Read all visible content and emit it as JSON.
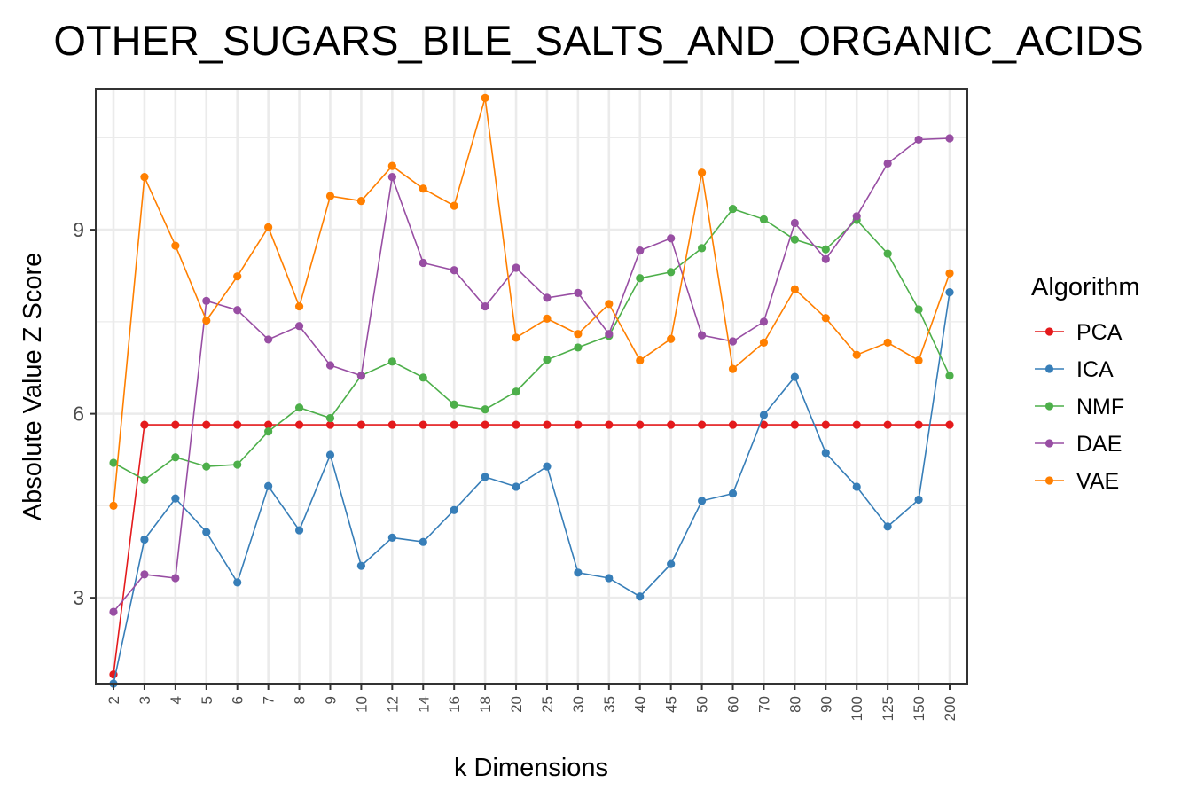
{
  "chart_data": {
    "type": "line",
    "title": "OTHER_SUGARS_BILE_SALTS_AND_ORGANIC_ACIDS",
    "xlabel": "k Dimensions",
    "ylabel": "Absolute Value Z Score",
    "categories": [
      "2",
      "3",
      "4",
      "5",
      "6",
      "7",
      "8",
      "9",
      "10",
      "12",
      "14",
      "16",
      "18",
      "20",
      "25",
      "30",
      "35",
      "40",
      "45",
      "50",
      "60",
      "70",
      "80",
      "90",
      "100",
      "125",
      "150",
      "200"
    ],
    "ylim": [
      1.6,
      11.3
    ],
    "yticks": [
      3,
      6,
      9
    ],
    "grid": true,
    "legend": {
      "title": "Algorithm",
      "position": "right"
    },
    "series": [
      {
        "name": "PCA",
        "color": "#e41a1c",
        "values": [
          1.75,
          5.82,
          5.82,
          5.82,
          5.82,
          5.82,
          5.82,
          5.82,
          5.82,
          5.82,
          5.82,
          5.82,
          5.82,
          5.82,
          5.82,
          5.82,
          5.82,
          5.82,
          5.82,
          5.82,
          5.82,
          5.82,
          5.82,
          5.82,
          5.82,
          5.82,
          5.82,
          5.82
        ]
      },
      {
        "name": "ICA",
        "color": "#377eb8",
        "values": [
          1.6,
          3.95,
          4.62,
          4.07,
          3.25,
          4.82,
          4.1,
          5.33,
          3.52,
          3.98,
          3.91,
          4.43,
          4.97,
          4.81,
          5.14,
          3.41,
          3.32,
          3.02,
          3.55,
          4.58,
          4.7,
          5.98,
          6.6,
          5.36,
          4.81,
          4.16,
          4.6,
          7.98
        ]
      },
      {
        "name": "NMF",
        "color": "#4daf4a",
        "values": [
          5.2,
          4.92,
          5.29,
          5.14,
          5.17,
          5.71,
          6.1,
          5.93,
          6.62,
          6.85,
          6.59,
          6.15,
          6.07,
          6.36,
          6.88,
          7.08,
          7.27,
          8.21,
          8.31,
          8.7,
          9.34,
          9.17,
          8.84,
          8.68,
          9.16,
          8.61,
          7.7,
          6.62
        ]
      },
      {
        "name": "DAE",
        "color": "#984ea3",
        "values": [
          2.77,
          3.38,
          3.32,
          7.84,
          7.69,
          7.21,
          7.43,
          6.79,
          6.62,
          9.86,
          8.46,
          8.34,
          7.75,
          8.38,
          7.89,
          7.97,
          7.3,
          8.66,
          8.86,
          7.28,
          7.18,
          7.5,
          9.11,
          8.52,
          9.22,
          10.08,
          10.47,
          10.49
        ]
      },
      {
        "name": "VAE",
        "color": "#ff7f00",
        "values": [
          4.5,
          9.86,
          8.74,
          7.52,
          8.24,
          9.04,
          7.75,
          9.55,
          9.47,
          10.04,
          9.67,
          9.39,
          11.15,
          7.24,
          7.55,
          7.3,
          7.79,
          6.87,
          7.22,
          9.93,
          6.73,
          7.16,
          8.03,
          7.56,
          6.96,
          7.16,
          6.87,
          8.29
        ]
      }
    ]
  }
}
